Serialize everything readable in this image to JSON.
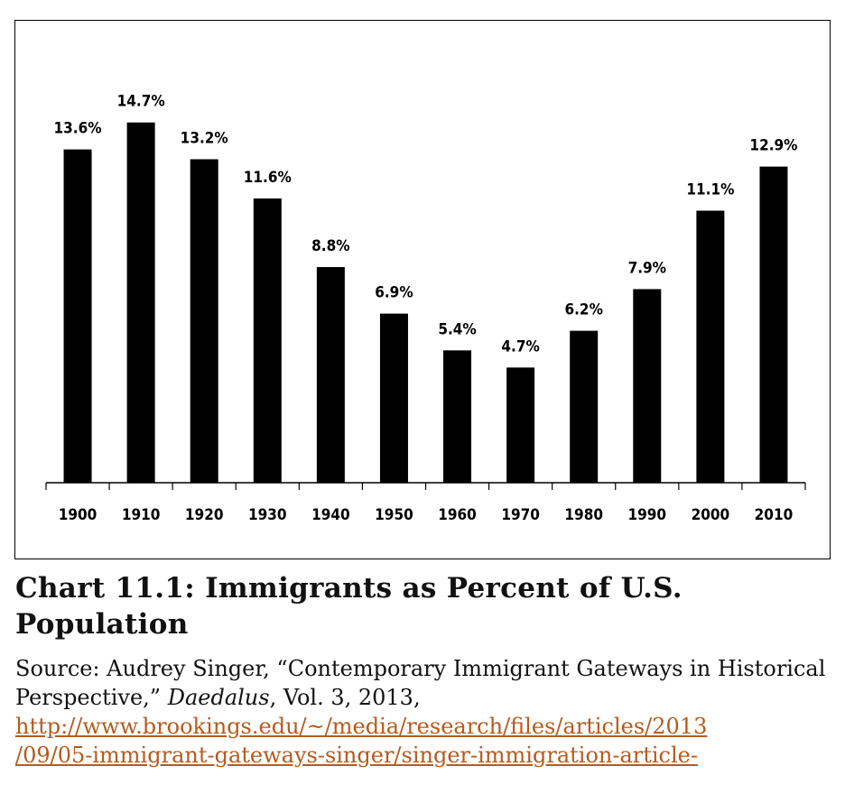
{
  "chart_data": {
    "type": "bar",
    "categories": [
      "1900",
      "1910",
      "1920",
      "1930",
      "1940",
      "1950",
      "1960",
      "1970",
      "1980",
      "1990",
      "2000",
      "2010"
    ],
    "values": [
      13.6,
      14.7,
      13.2,
      11.6,
      8.8,
      6.9,
      5.4,
      4.7,
      6.2,
      7.9,
      11.1,
      12.9
    ],
    "data_labels": [
      "13.6%",
      "14.7%",
      "13.2%",
      "11.6%",
      "8.8%",
      "6.9%",
      "5.4%",
      "4.7%",
      "6.2%",
      "7.9%",
      "11.1%",
      "12.9%"
    ],
    "ylim": [
      0,
      16.2
    ],
    "grid": false,
    "legend": "none",
    "bar_color": "#000000"
  },
  "caption": {
    "title": "Chart 11.1: Immigrants as Percent of U.S. Population"
  },
  "source": {
    "prefix": "Source: Audrey Singer, “Contemporary Immigrant Gateways in Historical Perspective,”",
    "journal": "Daedalus",
    "suffix": ", Vol. 3, 2013,",
    "url_line1": "http://www.brookings.edu/~/media/research/files/articles/2013",
    "url_line2": "/09/05-immigrant-gateways-singer/singer-immigration-article-",
    "link_color": "#b65a1e"
  }
}
